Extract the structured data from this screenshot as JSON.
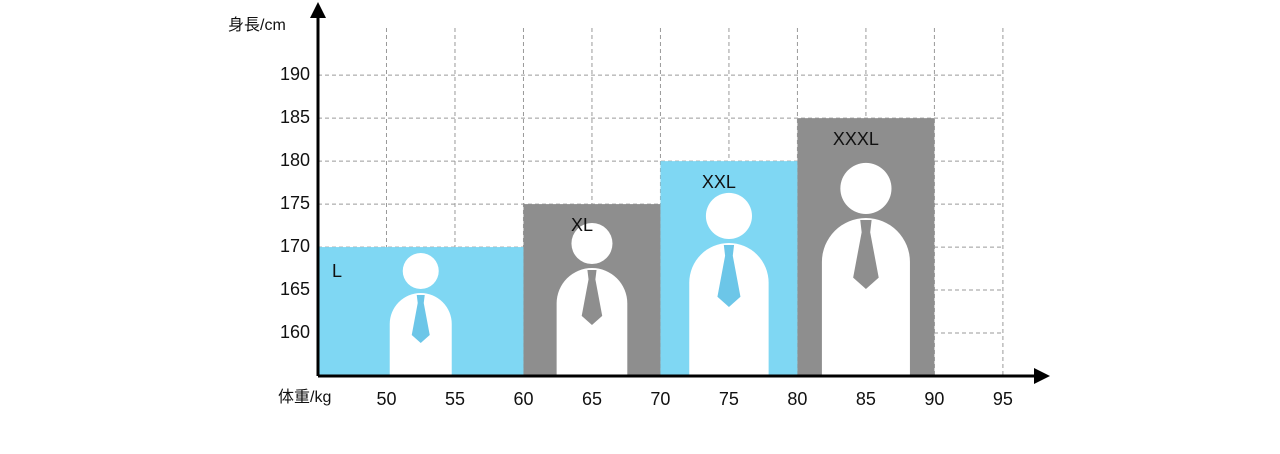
{
  "chart_data": {
    "type": "bar",
    "y_label": "身長/cm",
    "x_label": "体重/kg",
    "categories": [
      "L",
      "XL",
      "XXL",
      "XXXL"
    ],
    "x_start": [
      45,
      60,
      70,
      80
    ],
    "x_end": [
      60,
      70,
      80,
      90
    ],
    "values": [
      170,
      175,
      180,
      185
    ],
    "colors": [
      "#7fd7f3",
      "#8e8e8e",
      "#7fd7f3",
      "#8e8e8e"
    ],
    "xlim": [
      45,
      98
    ],
    "ylim": [
      155,
      197
    ],
    "xticks": [
      50,
      55,
      60,
      65,
      70,
      75,
      80,
      85,
      90,
      95
    ],
    "yticks": [
      160,
      165,
      170,
      175,
      180,
      185,
      190
    ],
    "grid": true
  }
}
